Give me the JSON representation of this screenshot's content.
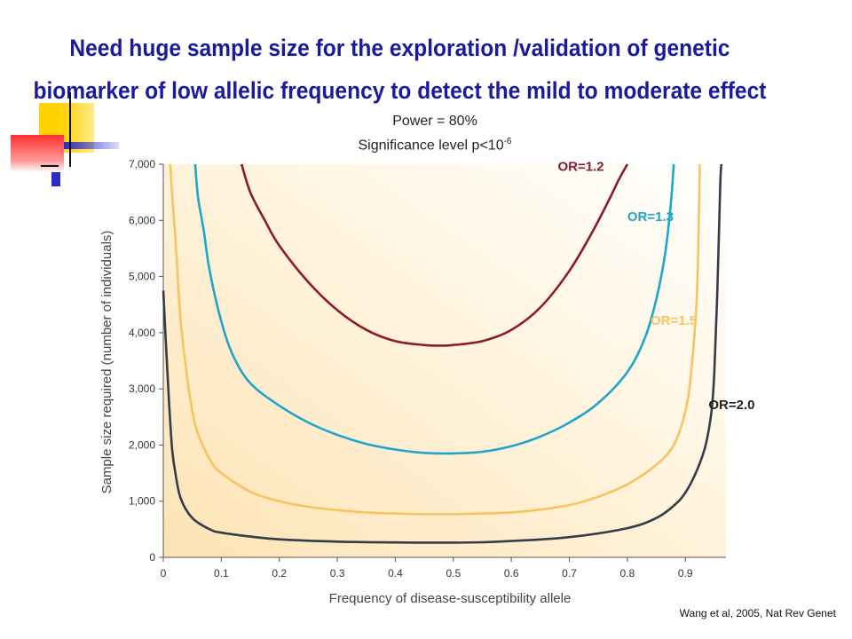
{
  "slide": {
    "title_line1": "Need huge sample size for the exploration /validation of  genetic",
    "title_line2": "biomarker of low allelic frequency to detect the mild to moderate effect",
    "power_text": "Power = 80%",
    "significance_text": "Significance level p<10",
    "significance_exponent": "-6",
    "citation": "Wang et al, 2005, Nat Rev Genet"
  },
  "colors": {
    "title": "#1a1a9e",
    "decor_yellow": "#ffd200",
    "decor_red": "#ff3030",
    "decor_blue": "#2a2ac8"
  },
  "chart_data": {
    "type": "line",
    "xlabel": "Frequency of disease-susceptibility allele",
    "ylabel": "Sample size required (number of individuals)",
    "xlim": [
      0,
      0.97
    ],
    "ylim": [
      0,
      7000
    ],
    "xticks": [
      "0",
      "0.1",
      "0.2",
      "0.3",
      "0.4",
      "0.5",
      "0.6",
      "0.7",
      "0.8",
      "0.9"
    ],
    "yticks": [
      "0",
      "1,000",
      "2,000",
      "3,000",
      "4,000",
      "5,000",
      "6,000",
      "7,000"
    ],
    "xtick_values": [
      0,
      0.1,
      0.2,
      0.3,
      0.4,
      0.5,
      0.6,
      0.7,
      0.8,
      0.9
    ],
    "ytick_values": [
      0,
      1000,
      2000,
      3000,
      4000,
      5000,
      6000,
      7000
    ],
    "grid": false,
    "series": [
      {
        "name": "OR=1.2",
        "color": "#8b1a2b",
        "x": [
          0.135,
          0.15,
          0.175,
          0.2,
          0.25,
          0.3,
          0.35,
          0.4,
          0.45,
          0.48,
          0.5,
          0.55,
          0.6,
          0.65,
          0.7,
          0.74,
          0.77,
          0.785,
          0.8
        ],
        "y": [
          7000,
          6500,
          6000,
          5550,
          4900,
          4400,
          4050,
          3850,
          3780,
          3770,
          3780,
          3850,
          4050,
          4450,
          5100,
          5800,
          6400,
          6720,
          7000
        ]
      },
      {
        "name": "OR=1.3",
        "color": "#1ea5cc",
        "x": [
          0.055,
          0.06,
          0.07,
          0.08,
          0.1,
          0.12,
          0.15,
          0.2,
          0.25,
          0.3,
          0.35,
          0.4,
          0.45,
          0.5,
          0.55,
          0.6,
          0.65,
          0.7,
          0.75,
          0.8,
          0.83,
          0.85,
          0.865,
          0.875,
          0.88
        ],
        "y": [
          7000,
          6400,
          5800,
          5100,
          4200,
          3600,
          3100,
          2700,
          2400,
          2180,
          2020,
          1920,
          1860,
          1850,
          1880,
          1980,
          2150,
          2400,
          2750,
          3300,
          3900,
          4600,
          5400,
          6300,
          7000
        ]
      },
      {
        "name": "OR=1.5",
        "color": "#f5c460",
        "x": [
          0.012,
          0.015,
          0.02,
          0.025,
          0.03,
          0.04,
          0.05,
          0.06,
          0.08,
          0.1,
          0.15,
          0.2,
          0.25,
          0.3,
          0.35,
          0.4,
          0.45,
          0.5,
          0.55,
          0.6,
          0.65,
          0.7,
          0.75,
          0.8,
          0.85,
          0.88,
          0.9,
          0.91,
          0.92,
          0.925
        ],
        "y": [
          7000,
          6500,
          5800,
          5000,
          4200,
          3300,
          2600,
          2200,
          1750,
          1500,
          1170,
          1000,
          900,
          840,
          800,
          780,
          770,
          770,
          780,
          800,
          850,
          930,
          1080,
          1300,
          1650,
          2000,
          2600,
          3300,
          4700,
          7000
        ]
      },
      {
        "name": "OR=2.0",
        "color": "#333c48",
        "x": [
          0.0,
          0.005,
          0.01,
          0.015,
          0.02,
          0.03,
          0.05,
          0.08,
          0.1,
          0.15,
          0.2,
          0.3,
          0.4,
          0.45,
          0.5,
          0.55,
          0.6,
          0.7,
          0.8,
          0.85,
          0.88,
          0.9,
          0.92,
          0.935,
          0.945,
          0.95,
          0.955,
          0.96,
          0.962
        ],
        "y": [
          4750,
          3700,
          2750,
          1950,
          1550,
          1050,
          700,
          500,
          440,
          370,
          320,
          280,
          265,
          262,
          262,
          268,
          290,
          360,
          520,
          700,
          920,
          1150,
          1550,
          2000,
          2600,
          3300,
          4700,
          6600,
          7000
        ]
      }
    ],
    "series_labels": [
      {
        "text": "OR=1.2",
        "x": 0.68,
        "y": 6880
      },
      {
        "text": "OR=1.3",
        "x": 0.8,
        "y": 5990
      },
      {
        "text": "OR=1.5",
        "x": 0.84,
        "y": 4140
      },
      {
        "text": "OR=2.0",
        "x": 0.94,
        "y": 2640
      }
    ]
  }
}
